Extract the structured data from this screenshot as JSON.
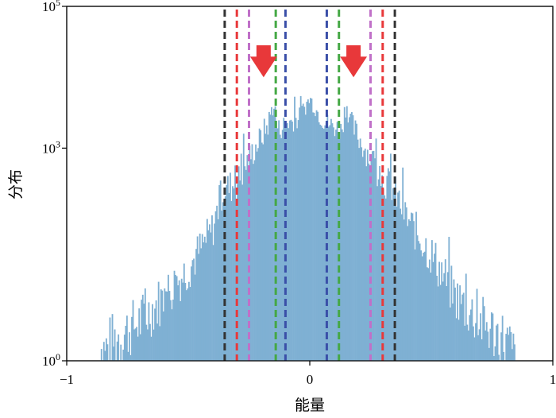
{
  "chart_data": {
    "type": "histogram",
    "xlabel": "能量",
    "ylabel": "分布",
    "xlim": [
      -1,
      1
    ],
    "ylim_log10": [
      0,
      5
    ],
    "y_scale": "log",
    "x_ticks": [
      {
        "value": -1,
        "label": "−1"
      },
      {
        "value": 0,
        "label": "0"
      },
      {
        "value": 1,
        "label": "1"
      }
    ],
    "y_ticks": [
      {
        "exp": 0,
        "base": "10",
        "sup": "0"
      },
      {
        "exp": 3,
        "base": "10",
        "sup": "3"
      },
      {
        "exp": 5,
        "base": "10",
        "sup": "5"
      }
    ],
    "bar_color": "#7fb0d3",
    "envelope_points": [
      [
        -0.88,
        0.0
      ],
      [
        -0.8,
        0.3
      ],
      [
        -0.7,
        0.55
      ],
      [
        -0.6,
        0.9
      ],
      [
        -0.5,
        1.3
      ],
      [
        -0.4,
        1.85
      ],
      [
        -0.36,
        2.4
      ],
      [
        -0.3,
        2.5
      ],
      [
        -0.25,
        2.85
      ],
      [
        -0.2,
        3.15
      ],
      [
        -0.17,
        3.35
      ],
      [
        -0.15,
        3.65
      ],
      [
        -0.13,
        3.25
      ],
      [
        -0.1,
        3.35
      ],
      [
        -0.05,
        3.4
      ],
      [
        0.0,
        3.7
      ],
      [
        0.05,
        3.4
      ],
      [
        0.1,
        3.3
      ],
      [
        0.13,
        3.25
      ],
      [
        0.15,
        3.65
      ],
      [
        0.17,
        3.35
      ],
      [
        0.2,
        3.15
      ],
      [
        0.25,
        2.85
      ],
      [
        0.3,
        2.55
      ],
      [
        0.34,
        2.45
      ],
      [
        0.4,
        2.0
      ],
      [
        0.5,
        1.5
      ],
      [
        0.6,
        0.9
      ],
      [
        0.7,
        0.55
      ],
      [
        0.8,
        0.3
      ],
      [
        0.85,
        0.0
      ]
    ],
    "vertical_lines": [
      {
        "x": -0.35,
        "color": "#333333"
      },
      {
        "x": 0.35,
        "color": "#333333"
      },
      {
        "x": -0.3,
        "color": "#e8383a"
      },
      {
        "x": 0.3,
        "color": "#e8383a"
      },
      {
        "x": -0.25,
        "color": "#c070c8"
      },
      {
        "x": 0.25,
        "color": "#c070c8"
      },
      {
        "x": -0.14,
        "color": "#45a845"
      },
      {
        "x": 0.12,
        "color": "#45a845"
      },
      {
        "x": -0.1,
        "color": "#3a4fa8"
      },
      {
        "x": 0.07,
        "color": "#3a4fa8"
      }
    ],
    "arrows": [
      {
        "x": -0.19,
        "y_log_top": 4.45,
        "y_log_bottom": 4.0,
        "color": "#e8383a"
      },
      {
        "x": 0.18,
        "y_log_top": 4.45,
        "y_log_bottom": 4.0,
        "color": "#e8383a"
      }
    ]
  }
}
